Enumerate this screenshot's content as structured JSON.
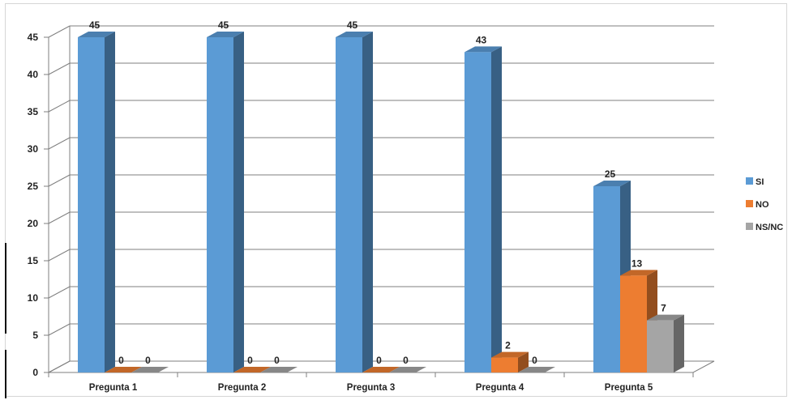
{
  "chart_data": {
    "type": "bar",
    "categories": [
      "Pregunta 1",
      "Pregunta 2",
      "Pregunta 3",
      "Pregunta 4",
      "Pregunta 5"
    ],
    "series": [
      {
        "name": "SI",
        "values": [
          45,
          45,
          45,
          43,
          25
        ],
        "color": "#5b9bd5"
      },
      {
        "name": "NO",
        "values": [
          0,
          0,
          0,
          2,
          13
        ],
        "color": "#ed7d31"
      },
      {
        "name": "NS/NC",
        "values": [
          0,
          0,
          0,
          0,
          7
        ],
        "color": "#a5a5a5"
      }
    ],
    "yticks": [
      0,
      5,
      10,
      15,
      20,
      25,
      30,
      35,
      40,
      45
    ],
    "ylim": [
      0,
      45
    ],
    "grid": true,
    "legend": "right",
    "style": "3d-clustered-column"
  }
}
